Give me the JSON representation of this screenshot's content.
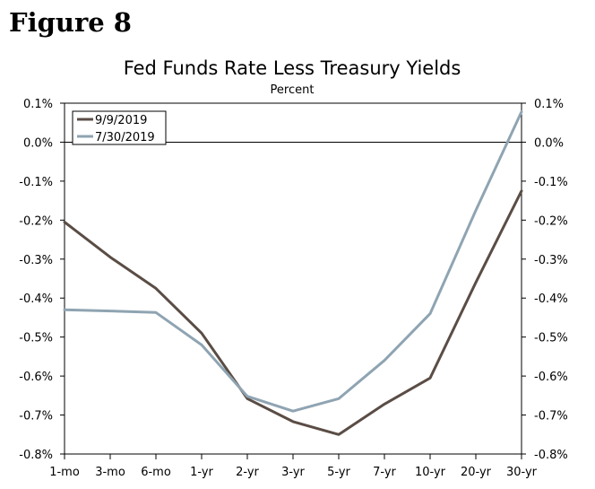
{
  "figure_label": "Figure 8",
  "chart_data": {
    "type": "line",
    "title": "Fed Funds Rate Less Treasury Yields",
    "subtitle": "Percent",
    "categories": [
      "1-mo",
      "3-mo",
      "6-mo",
      "1-yr",
      "2-yr",
      "3-yr",
      "5-yr",
      "7-yr",
      "10-yr",
      "20-yr",
      "30-yr"
    ],
    "ylim": [
      -0.8,
      0.1
    ],
    "yticks": [
      0.1,
      0.0,
      -0.1,
      -0.2,
      -0.3,
      -0.4,
      -0.5,
      -0.6,
      -0.7,
      -0.8
    ],
    "ytick_labels": [
      "0.1%",
      "0.0%",
      "-0.1%",
      "-0.2%",
      "-0.3%",
      "-0.4%",
      "-0.5%",
      "-0.6%",
      "-0.7%",
      "-0.8%"
    ],
    "secondary_axis": true,
    "grid": false,
    "legend_position": "top-left",
    "series": [
      {
        "name": "9/9/2019",
        "color": "#5a4d45",
        "values": [
          -0.205,
          -0.295,
          -0.375,
          -0.49,
          -0.658,
          -0.717,
          -0.75,
          -0.672,
          -0.605,
          -0.36,
          -0.125
        ]
      },
      {
        "name": "7/30/2019",
        "color": "#8fa4b2",
        "values": [
          -0.43,
          -0.433,
          -0.437,
          -0.52,
          -0.652,
          -0.69,
          -0.658,
          -0.56,
          -0.44,
          -0.175,
          0.078
        ]
      }
    ]
  }
}
